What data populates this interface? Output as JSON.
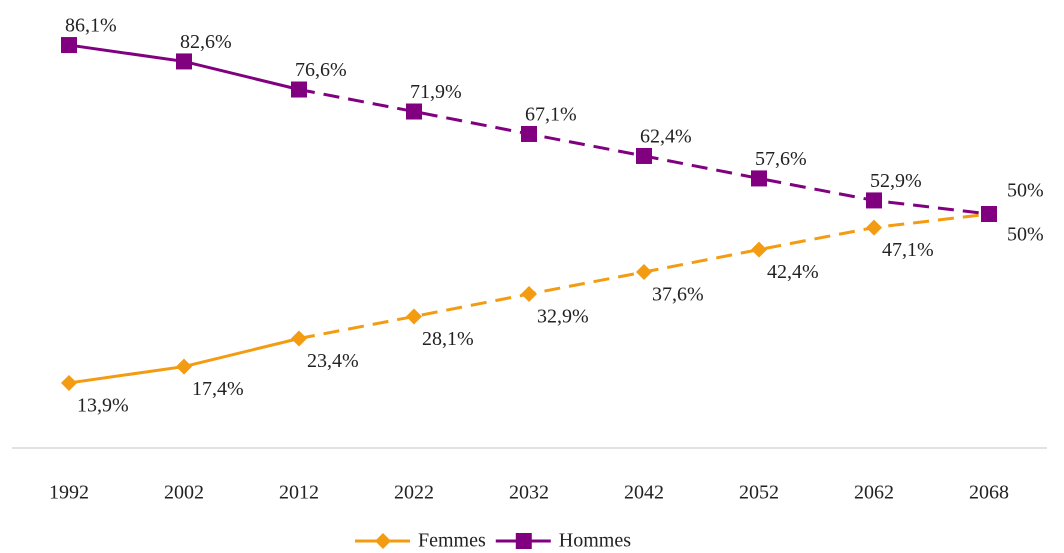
{
  "chart_data": {
    "type": "line",
    "categories": [
      "1992",
      "2002",
      "2012",
      "2022",
      "2032",
      "2042",
      "2052",
      "2062",
      "2068"
    ],
    "series": [
      {
        "name": "Femmes",
        "color": "#f39c12",
        "marker": "diamond",
        "values": [
          13.9,
          17.4,
          23.4,
          28.1,
          32.9,
          37.6,
          42.4,
          47.1,
          50
        ],
        "value_labels": [
          "13,9%",
          "17,4%",
          "23,4%",
          "28,1%",
          "32,9%",
          "37,6%",
          "42,4%",
          "47,1%",
          "50%"
        ]
      },
      {
        "name": "Hommes",
        "color": "#800080",
        "marker": "square",
        "values": [
          86.1,
          82.6,
          76.6,
          71.9,
          67.1,
          62.4,
          57.6,
          52.9,
          50
        ],
        "value_labels": [
          "86,1%",
          "82,6%",
          "76,6%",
          "71,9%",
          "67,1%",
          "62,4%",
          "57,6%",
          "52,9%",
          "50%"
        ]
      }
    ],
    "dash_start_index": 2,
    "ylim": [
      0,
      95
    ],
    "legend": "bottom"
  }
}
